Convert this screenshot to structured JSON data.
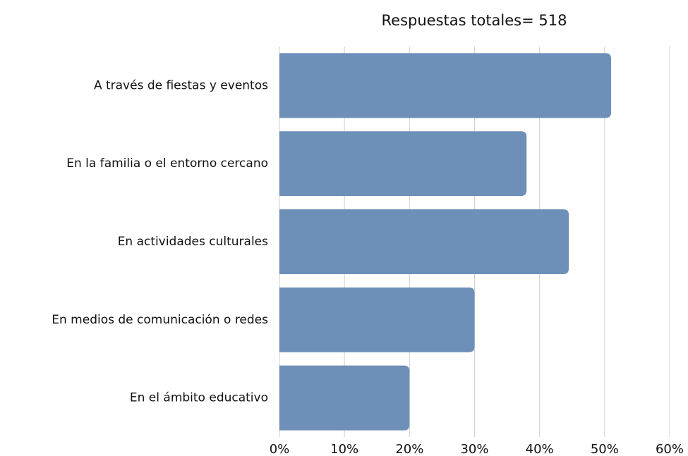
{
  "chart_data": {
    "type": "barh",
    "title": "Respuestas totales= 518",
    "categories": [
      "A través de fiestas y eventos",
      "En la familia o el entorno cercano",
      "En actividades culturales",
      "En medios de comunicación o redes",
      "En el ámbito educativo"
    ],
    "values": [
      51,
      38,
      44.5,
      30,
      20
    ],
    "color": "#6d8fb8",
    "xlim": [
      0,
      60
    ],
    "xticks": [
      {
        "value": 0,
        "label": "0%"
      },
      {
        "value": 10,
        "label": "10%"
      },
      {
        "value": 20,
        "label": "20%"
      },
      {
        "value": 30,
        "label": "30%"
      },
      {
        "value": 40,
        "label": "40%"
      },
      {
        "value": 50,
        "label": "50%"
      },
      {
        "value": 60,
        "label": "60%"
      }
    ],
    "grid": true
  }
}
